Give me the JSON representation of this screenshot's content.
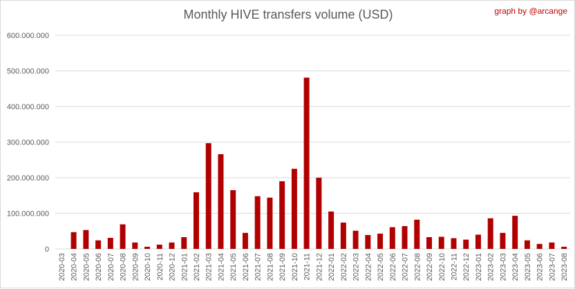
{
  "title": "Monthly HIVE transfers volume (USD)",
  "credit": "graph by @arcange",
  "colors": {
    "bar": "#b00000",
    "grid": "#d9d9d9",
    "text": "#595959",
    "credit": "#c00000"
  },
  "chart_data": {
    "type": "bar",
    "title": "Monthly HIVE transfers volume (USD)",
    "xlabel": "",
    "ylabel": "",
    "ylim": [
      0,
      600000000
    ],
    "yticks": [
      0,
      100000000,
      200000000,
      300000000,
      400000000,
      500000000,
      600000000
    ],
    "ytick_labels": [
      "0",
      "100.000.000",
      "200.000.000",
      "300.000.000",
      "400.000.000",
      "500.000.000",
      "600.000.000"
    ],
    "grid": true,
    "legend": "none",
    "categories": [
      "2020-03",
      "2020-04",
      "2020-05",
      "2020-06",
      "2020-07",
      "2020-08",
      "2020-09",
      "2020-10",
      "2020-11",
      "2020-12",
      "2021-01",
      "2021-02",
      "2021-03",
      "2021-04",
      "2021-05",
      "2021-06",
      "2021-07",
      "2021-08",
      "2021-09",
      "2021-10",
      "2021-11",
      "2021-12",
      "2022-01",
      "2022-02",
      "2022-03",
      "2022-04",
      "2022-05",
      "2022-06",
      "2022-07",
      "2022-08",
      "2022-09",
      "2022-10",
      "2022-11",
      "2022-12",
      "2023-01",
      "2023-02",
      "2023-03",
      "2023-04",
      "2023-05",
      "2023-06",
      "2023-07",
      "2023-08"
    ],
    "values": [
      0,
      47000000,
      53000000,
      24000000,
      31000000,
      69000000,
      18000000,
      6000000,
      12000000,
      18000000,
      33000000,
      159000000,
      297000000,
      266000000,
      165000000,
      45000000,
      148000000,
      144000000,
      190000000,
      225000000,
      481000000,
      200000000,
      105000000,
      74000000,
      51000000,
      39000000,
      43000000,
      61000000,
      64000000,
      82000000,
      33000000,
      34000000,
      30000000,
      26000000,
      40000000,
      86000000,
      45000000,
      93000000,
      24000000,
      14000000,
      18000000,
      6000000
    ]
  }
}
